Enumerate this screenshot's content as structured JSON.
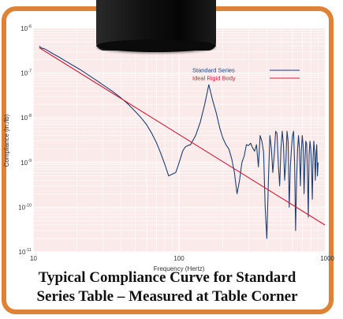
{
  "chart_data": {
    "type": "line",
    "xscale": "log",
    "yscale": "log",
    "xlabel": "Frequency (Hertz)",
    "ylabel": "Compliance (in./lb)",
    "xlim": [
      10,
      1000
    ],
    "ylim": [
      1e-11,
      1e-06
    ],
    "x_ticks": [
      {
        "value": 10,
        "label": "10"
      },
      {
        "value": 100,
        "label": "100"
      },
      {
        "value": 1000,
        "label": "1000"
      }
    ],
    "y_ticks": [
      {
        "value": 1e-11,
        "base": "10",
        "exp": "-11"
      },
      {
        "value": 1e-10,
        "base": "10",
        "exp": "-10"
      },
      {
        "value": 1e-09,
        "base": "10",
        "exp": "-9"
      },
      {
        "value": 1e-08,
        "base": "10",
        "exp": "-8"
      },
      {
        "value": 1e-07,
        "base": "10",
        "exp": "-7"
      },
      {
        "value": 1e-06,
        "base": "10",
        "exp": "-6"
      }
    ],
    "grid": true,
    "legend_position": "top-right",
    "series": [
      {
        "name": "Standard Series",
        "color": "#1f3f73",
        "x": [
          11,
          11.5,
          12,
          13,
          14,
          15,
          17,
          19,
          21,
          24,
          27,
          30,
          35,
          40,
          45,
          50,
          55,
          60,
          65,
          70,
          75,
          80,
          85,
          90,
          95,
          98,
          102,
          106,
          110,
          115,
          120,
          130,
          140,
          150,
          160,
          170,
          180,
          190,
          200,
          210,
          220,
          230,
          240,
          250,
          260,
          270,
          280,
          290,
          300,
          310,
          320,
          330,
          340,
          350,
          360,
          370,
          380,
          390,
          400,
          410,
          420,
          430,
          440,
          450,
          460,
          470,
          480,
          490,
          500,
          510,
          520,
          530,
          540,
          550,
          560,
          570,
          580,
          590,
          600,
          610,
          620,
          630,
          640,
          650,
          660,
          670,
          680,
          690,
          700,
          710,
          720,
          730,
          740,
          750,
          760,
          770,
          780,
          790,
          800,
          810,
          820,
          830,
          840,
          850,
          860,
          870,
          880,
          890,
          900
        ],
        "y": [
          4e-07,
          3.6e-07,
          3.5e-07,
          3e-07,
          2.6e-07,
          2.3e-07,
          1.8e-07,
          1.45e-07,
          1.2e-07,
          9e-08,
          7e-08,
          5.5e-08,
          3.9e-08,
          2.8e-08,
          2e-08,
          1.4e-08,
          1e-08,
          7e-09,
          4.5e-09,
          2.8e-09,
          1.6e-09,
          9e-10,
          5e-10,
          5.5e-10,
          6e-10,
          8e-10,
          1.2e-09,
          1.8e-09,
          2.2e-09,
          2.4e-09,
          2.5e-09,
          4e-09,
          8e-09,
          2e-08,
          5.5e-08,
          2.5e-08,
          1.3e-08,
          6e-09,
          3.5e-09,
          2.5e-09,
          2e-09,
          1.2e-09,
          6e-10,
          2e-10,
          4e-10,
          1e-09,
          1.4e-09,
          2.5e-09,
          2.4e-09,
          2.7e-09,
          2.1e-09,
          1.8e-09,
          2.5e-09,
          8e-10,
          4e-09,
          3e-09,
          1.7e-09,
          1e-10,
          2e-11,
          4e-10,
          4e-09,
          2e-09,
          6e-10,
          1.5e-09,
          5e-09,
          4.5e-09,
          9e-10,
          3e-10,
          2e-09,
          5e-09,
          2.5e-09,
          4e-10,
          1e-09,
          5e-09,
          3e-09,
          1e-10,
          8e-10,
          2e-09,
          4e-09,
          5e-09,
          1e-09,
          3e-11,
          4e-10,
          2e-09,
          4e-09,
          2e-09,
          3e-10,
          1.8e-09,
          4e-09,
          2.3e-09,
          2e-10,
          1e-09,
          3e-09,
          2.6e-09,
          5e-10,
          6e-11,
          1.5e-09,
          3e-09,
          2e-09,
          8e-10,
          1.5e-10,
          1.2e-09,
          3e-09,
          1.8e-09,
          4e-10,
          1.5e-09,
          2.5e-09,
          5e-10,
          1e-09
        ]
      },
      {
        "name": "Ideal Rigid Body",
        "color": "#d01c38",
        "x": [
          11,
          1000
        ],
        "y": [
          3.7e-07,
          4e-11
        ]
      }
    ]
  },
  "caption": {
    "line1": "Typical Compliance Curve for Standard",
    "line2": "Series Table – Measured at Table Corner"
  },
  "colors": {
    "frame": "#e08236",
    "plot_background": "#fbeaea",
    "grid_major": "#ffffff"
  }
}
